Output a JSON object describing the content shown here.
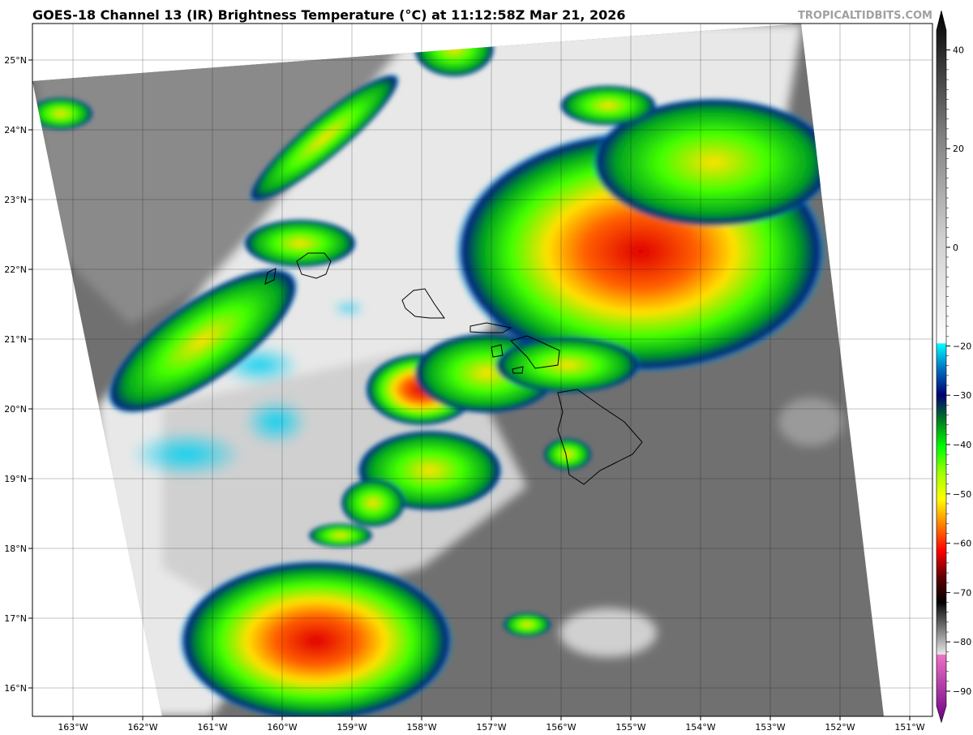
{
  "title": "GOES-18 Channel 13 (IR) Brightness Temperature (°C) at 11:12:58Z Mar 21, 2026",
  "brand": "TROPICALTIDBITS.COM",
  "map": {
    "lon_ticks": [
      "163°W",
      "162°W",
      "161°W",
      "160°W",
      "159°W",
      "158°W",
      "157°W",
      "156°W",
      "155°W",
      "154°W",
      "153°W",
      "152°W",
      "151°W"
    ],
    "lon_values": [
      -163,
      -162,
      -161,
      -160,
      -159,
      -158,
      -157,
      -156,
      -155,
      -154,
      -153,
      -152,
      -151
    ],
    "lat_ticks": [
      "25°N",
      "24°N",
      "23°N",
      "22°N",
      "21°N",
      "20°N",
      "19°N",
      "18°N",
      "17°N",
      "16°N"
    ],
    "lat_values": [
      25,
      24,
      23,
      22,
      21,
      20,
      19,
      18,
      17,
      16
    ],
    "grid": true
  },
  "colorbar": {
    "ticks": [
      "40",
      "20",
      "0",
      "−20",
      "−30",
      "−40",
      "−50",
      "−60",
      "−70",
      "−80",
      "−90"
    ],
    "tick_values": [
      40,
      20,
      0,
      -20,
      -30,
      -40,
      -50,
      -60,
      -70,
      -80,
      -90
    ],
    "range": [
      -90,
      40
    ],
    "stops": [
      {
        "v": -93,
        "c": "#6a0080"
      },
      {
        "v": -80,
        "c": "#ee70c8"
      },
      {
        "v": -79.9,
        "c": "#e8e8e8"
      },
      {
        "v": -71,
        "c": "#202020"
      },
      {
        "v": -70,
        "c": "#000000"
      },
      {
        "v": -65,
        "c": "#600000"
      },
      {
        "v": -60,
        "c": "#ff0000"
      },
      {
        "v": -55,
        "c": "#ff8000"
      },
      {
        "v": -50,
        "c": "#ffff00"
      },
      {
        "v": -45,
        "c": "#a0ff00"
      },
      {
        "v": -40,
        "c": "#00ff00"
      },
      {
        "v": -35,
        "c": "#008020"
      },
      {
        "v": -30,
        "c": "#000070"
      },
      {
        "v": -25,
        "c": "#0070c0"
      },
      {
        "v": -20.1,
        "c": "#00ffff"
      },
      {
        "v": -20,
        "c": "#ffffff"
      },
      {
        "v": 0,
        "c": "#d0d0d0"
      },
      {
        "v": 20,
        "c": "#808080"
      },
      {
        "v": 44,
        "c": "#000000"
      }
    ]
  }
}
